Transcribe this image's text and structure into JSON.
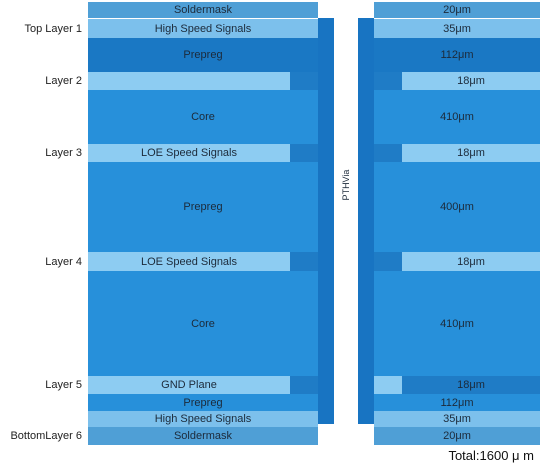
{
  "layers": [
    {
      "id": "soldermask-top",
      "label": "",
      "text": "Soldermask",
      "thickness": "20μm",
      "kind": "soldermask"
    },
    {
      "id": "top-signal",
      "label": "Top Layer 1",
      "text": "High Speed Signals",
      "thickness": "35μm",
      "kind": "signal"
    },
    {
      "id": "prepreg-1",
      "label": "",
      "text": "Prepreg",
      "thickness": "112μm",
      "kind": "prepreg-dark"
    },
    {
      "id": "layer2",
      "label": "Layer 2",
      "text": "",
      "thickness": "18μm",
      "kind": "copper"
    },
    {
      "id": "core-1",
      "label": "",
      "text": "Core",
      "thickness": "410μm",
      "kind": "core"
    },
    {
      "id": "layer3",
      "label": "Layer 3",
      "text": "LOE Speed Signals",
      "thickness": "18μm",
      "kind": "copper"
    },
    {
      "id": "prepreg-2",
      "label": "",
      "text": "Prepreg",
      "thickness": "400μm",
      "kind": "core"
    },
    {
      "id": "layer4",
      "label": "Layer 4",
      "text": "LOE Speed Signals",
      "thickness": "18μm",
      "kind": "copper"
    },
    {
      "id": "core-2",
      "label": "",
      "text": "Core",
      "thickness": "410μm",
      "kind": "core"
    },
    {
      "id": "layer5",
      "label": "Layer 5",
      "text": "GND Plane",
      "thickness": "18μm",
      "kind": "copper"
    },
    {
      "id": "prepreg-3",
      "label": "",
      "text": "Prepreg",
      "thickness": "112μm",
      "kind": "core"
    },
    {
      "id": "bottom-signal",
      "label": "",
      "text": "High Speed Signals",
      "thickness": "35μm",
      "kind": "signal"
    },
    {
      "id": "soldermask-bottom",
      "label": "BottomLayer 6",
      "text": "Soldermask",
      "thickness": "20μm",
      "kind": "soldermask"
    }
  ],
  "via": {
    "label": "PTHVia"
  },
  "total": "Total:1600 μ m",
  "colors": {
    "soldermask": "#4f9fd6",
    "signal": "#7cc0ec",
    "prepreg_dark": "#1a78c4",
    "core": "#2790da",
    "copper_light": "#8dccf2",
    "copper_dark": "#1f7cc6",
    "via_wall": "#1874c2",
    "via_hole": "#ffffff"
  }
}
